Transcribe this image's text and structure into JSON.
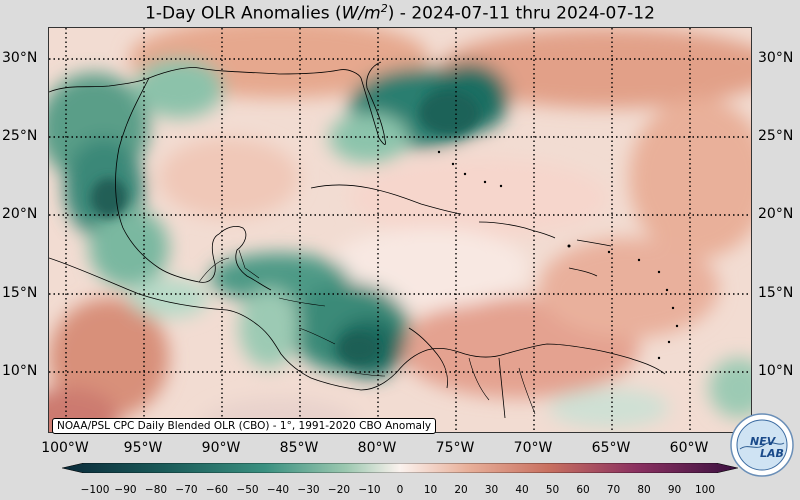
{
  "title": {
    "prefix": "1-Day OLR Anomalies (",
    "unit_base": "W/m",
    "unit_exp": "2",
    "suffix": ") - 2024-07-11 thru 2024-07-12"
  },
  "source_note": "NOAA/PSL CPC Daily Blended OLR (CBO) - 1°, 1991-2020 CBO Anomaly",
  "lat_labels": [
    "30°N",
    "25°N",
    "20°N",
    "15°N",
    "10°N"
  ],
  "lon_labels": [
    "100°W",
    "95°W",
    "90°W",
    "85°W",
    "80°W",
    "75°W",
    "70°W",
    "65°W",
    "60°W"
  ],
  "colorbar": {
    "ticks": [
      "−100",
      "−90",
      "−80",
      "−70",
      "−60",
      "−50",
      "−40",
      "−30",
      "−20",
      "−10",
      "0",
      "10",
      "20",
      "30",
      "40",
      "50",
      "60",
      "70",
      "80",
      "90",
      "100"
    ],
    "negative_color": "#1a5a52",
    "neutral_color": "#fbf2ee",
    "positive_color": "#c06040",
    "extreme_color": "#5a1a4a"
  },
  "logo": {
    "text": "NEV LAB"
  },
  "colors": {
    "background": "#dcdcdc",
    "map_base": "#f3ddd3",
    "coastline": "#000000",
    "grid": "#000000"
  }
}
